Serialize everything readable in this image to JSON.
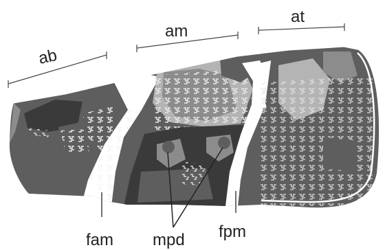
{
  "labels": {
    "ab": "ab",
    "am": "am",
    "at": "at",
    "fam": "fam",
    "mpd": "mpd",
    "fpm": "fpm"
  },
  "colors": {
    "background": "#ffffff",
    "wing_dark": "#5e5e5e",
    "wing_darker": "#3a3a3a",
    "wing_light": "#b4b4b4",
    "wing_mid": "#8c8c8c",
    "line": "#222222"
  }
}
